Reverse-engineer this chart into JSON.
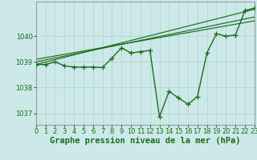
{
  "title": "Graphe pression niveau de la mer (hPa)",
  "bg_color": "#cce8e8",
  "grid_color": "#b8d8d8",
  "line_color": "#1a6e1a",
  "xlim": [
    0,
    23
  ],
  "ylim": [
    1036.55,
    1041.35
  ],
  "yticks": [
    1037,
    1038,
    1039,
    1040
  ],
  "xticks": [
    0,
    1,
    2,
    3,
    4,
    5,
    6,
    7,
    8,
    9,
    10,
    11,
    12,
    13,
    14,
    15,
    16,
    17,
    18,
    19,
    20,
    21,
    22,
    23
  ],
  "hours": [
    0,
    1,
    2,
    3,
    4,
    5,
    6,
    7,
    8,
    9,
    10,
    11,
    12,
    13,
    14,
    15,
    16,
    17,
    18,
    19,
    20,
    21,
    22,
    23
  ],
  "pressure": [
    1038.9,
    1038.9,
    1039.0,
    1038.85,
    1038.8,
    1038.8,
    1038.8,
    1038.78,
    1039.15,
    1039.55,
    1039.35,
    1039.4,
    1039.45,
    1036.85,
    1037.85,
    1037.6,
    1037.35,
    1037.65,
    1039.35,
    1040.1,
    1040.0,
    1040.05,
    1041.0,
    1041.1
  ],
  "trend_lines": [
    [
      [
        0,
        1039.0
      ],
      [
        23,
        1040.75
      ]
    ],
    [
      [
        0,
        1038.9
      ],
      [
        23,
        1041.05
      ]
    ],
    [
      [
        0,
        1039.1
      ],
      [
        23,
        1040.6
      ]
    ]
  ],
  "title_fontsize": 7.5,
  "tick_fontsize": 6.0,
  "marker_size": 4,
  "line_width": 1.0
}
